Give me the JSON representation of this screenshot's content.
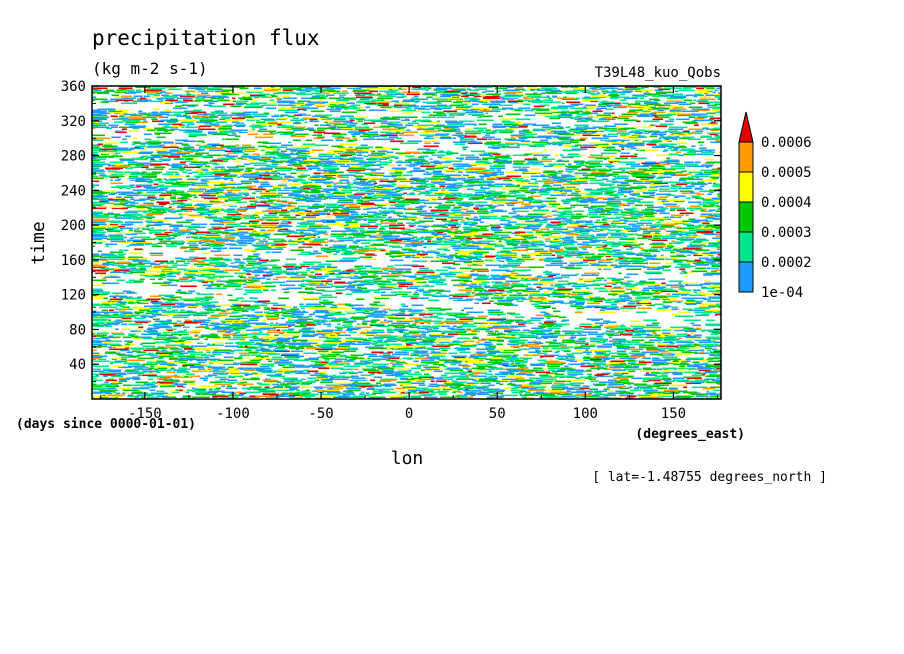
{
  "chart_data": {
    "type": "heatmap",
    "title": "precipitation flux",
    "units": "(kg m-2 s-1)",
    "dataset": "T39L48_kuo_Qobs",
    "xlabel": "lon",
    "xunits": "(degrees_east)",
    "ylabel": "time",
    "yunits": "(days since 0000-01-01)",
    "subset_note": "[ lat=-1.48755 degrees_north ]",
    "xlim": [
      -180,
      177
    ],
    "ylim": [
      0,
      360
    ],
    "xticks": [
      -150,
      -100,
      -50,
      0,
      50,
      100,
      150
    ],
    "xtick_labels": [
      "-150",
      "-100",
      "-50",
      "0",
      "50",
      "100",
      "150"
    ],
    "yticks": [
      40,
      80,
      120,
      160,
      200,
      240,
      280,
      320,
      360
    ],
    "ytick_labels": [
      "40",
      "80",
      "120",
      "160",
      "200",
      "240",
      "280",
      "320",
      "360"
    ],
    "levels": [
      0.0001,
      0.0002,
      0.0003,
      0.0004,
      0.0005,
      0.0006
    ],
    "colorbar_labels": [
      "1e-04",
      "0.0002",
      "0.0003",
      "0.0004",
      "0.0005",
      "0.0006"
    ],
    "colors": [
      "#1e9bff",
      "#00e58c",
      "#00c800",
      "#ffff00",
      "#ff9a00",
      "#e10000"
    ],
    "colorbar_extend": "max",
    "grid": false,
    "pattern": "noisy streaks of precipitation across all longitudes, denser near 0-80, 180-320 days; westward-tilted dry bands around 90-170 days and 280-300 days"
  }
}
